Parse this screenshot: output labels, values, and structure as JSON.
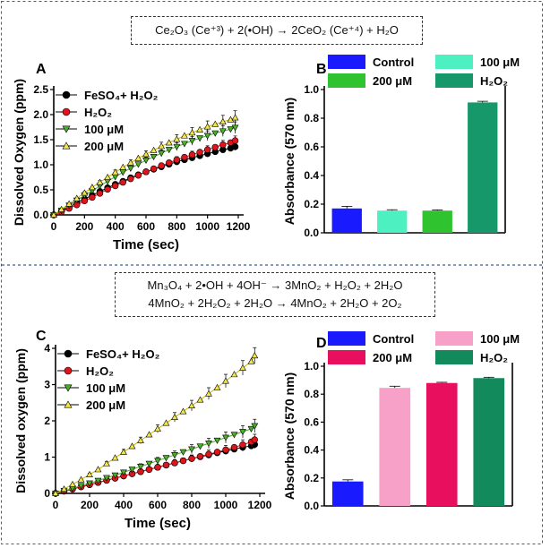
{
  "equations": {
    "top": "Ce₂O₃ (Ce⁺³) + 2(•OH) → 2CeO₂ (Ce⁺⁴) + H₂O",
    "bottom_line1": "Mn₃O₄ + 2•OH + 4OH⁻ → 3MnO₂ + H₂O₂ + 2H₂O",
    "bottom_line2": "4MnO₂ + 2H₂O₂ + 2H₂O → 4MnO₂ + 2H₂O + 2O₂"
  },
  "colors": {
    "black": "#000000",
    "red": "#e0141b",
    "green": "#4caf2a",
    "yellow": "#f2e64a",
    "control_blue": "#1a1aff",
    "aqua_100": "#4df0c0",
    "green_200": "#2fc42f",
    "h2o2_green": "#17986a",
    "pink_100": "#f7a0c8",
    "crimson_200": "#e8105e",
    "h2o2_teal": "#138a5c",
    "divider": "#3a5f8f"
  },
  "chart_data": [
    {
      "panel": "A",
      "type": "line",
      "xlabel": "Time (sec)",
      "ylabel": "Dissolved Oxygen (ppm)",
      "xlim": [
        0,
        1200
      ],
      "ylim": [
        0,
        2.5
      ],
      "xticks": [
        "0",
        "200",
        "400",
        "600",
        "800",
        "1000",
        "1200"
      ],
      "yticks": [
        "0.0",
        "0.5",
        "1.0",
        "1.5",
        "2.0",
        "2.5"
      ],
      "legend_position": "top-left",
      "series": [
        {
          "name": "FeSO₄+ H₂O₂",
          "color": "#000000",
          "marker": "circle",
          "x": [
            0,
            50,
            100,
            150,
            200,
            250,
            300,
            350,
            400,
            450,
            500,
            550,
            600,
            650,
            700,
            750,
            800,
            850,
            900,
            950,
            1000,
            1050,
            1100,
            1150,
            1180
          ],
          "y": [
            0,
            0.08,
            0.16,
            0.24,
            0.32,
            0.39,
            0.47,
            0.54,
            0.61,
            0.67,
            0.74,
            0.8,
            0.86,
            0.91,
            0.96,
            1.01,
            1.06,
            1.1,
            1.14,
            1.18,
            1.22,
            1.26,
            1.3,
            1.33,
            1.36
          ]
        },
        {
          "name": "H₂O₂",
          "color": "#e0141b",
          "marker": "circle",
          "x": [
            0,
            50,
            100,
            150,
            200,
            250,
            300,
            350,
            400,
            450,
            500,
            550,
            600,
            650,
            700,
            750,
            800,
            850,
            900,
            950,
            1000,
            1050,
            1100,
            1150,
            1180
          ],
          "y": [
            0,
            0.06,
            0.13,
            0.2,
            0.28,
            0.35,
            0.43,
            0.51,
            0.58,
            0.65,
            0.72,
            0.79,
            0.86,
            0.92,
            0.98,
            1.04,
            1.1,
            1.15,
            1.2,
            1.25,
            1.3,
            1.35,
            1.4,
            1.44,
            1.48
          ]
        },
        {
          "name": "100 μM",
          "color": "#4caf2a",
          "marker": "triangle-down",
          "x": [
            0,
            50,
            100,
            150,
            200,
            250,
            300,
            350,
            400,
            450,
            500,
            550,
            600,
            650,
            700,
            750,
            800,
            850,
            900,
            950,
            1000,
            1050,
            1100,
            1150,
            1180
          ],
          "y": [
            0,
            0.09,
            0.19,
            0.29,
            0.39,
            0.48,
            0.58,
            0.67,
            0.76,
            0.85,
            0.93,
            1.01,
            1.09,
            1.16,
            1.23,
            1.3,
            1.36,
            1.42,
            1.48,
            1.53,
            1.58,
            1.63,
            1.67,
            1.71,
            1.74
          ]
        },
        {
          "name": "200 μM",
          "color": "#f2e64a",
          "marker": "triangle-up",
          "x": [
            0,
            50,
            100,
            150,
            200,
            250,
            300,
            350,
            400,
            450,
            500,
            550,
            600,
            650,
            700,
            750,
            800,
            850,
            900,
            950,
            1000,
            1050,
            1100,
            1150,
            1180
          ],
          "y": [
            0,
            0.11,
            0.22,
            0.33,
            0.44,
            0.55,
            0.65,
            0.75,
            0.85,
            0.95,
            1.04,
            1.13,
            1.21,
            1.29,
            1.37,
            1.44,
            1.51,
            1.58,
            1.64,
            1.7,
            1.76,
            1.81,
            1.86,
            1.9,
            1.94
          ]
        }
      ]
    },
    {
      "panel": "B",
      "type": "bar",
      "ylabel": "Absorbance (570 nm)",
      "ylim": [
        0,
        1.0
      ],
      "yticks": [
        "0.0",
        "0.2",
        "0.4",
        "0.6",
        "0.8",
        "1.0"
      ],
      "legend_position": "top",
      "bars": [
        {
          "name": "Control",
          "value": 0.17,
          "err": 0.015,
          "color": "#1a1aff"
        },
        {
          "name": "100 μM",
          "value": 0.155,
          "err": 0.006,
          "color": "#4df0c0"
        },
        {
          "name": "200 μM",
          "value": 0.155,
          "err": 0.005,
          "color": "#2fc42f"
        },
        {
          "name": "H₂O₂",
          "value": 0.91,
          "err": 0.008,
          "color": "#17986a"
        }
      ]
    },
    {
      "panel": "C",
      "type": "line",
      "xlabel": "Time (sec)",
      "ylabel": "Dissolved oxygen (ppm)",
      "xlim": [
        0,
        1200
      ],
      "ylim": [
        0,
        4
      ],
      "xticks": [
        "0",
        "200",
        "400",
        "600",
        "800",
        "1000",
        "1200"
      ],
      "yticks": [
        "0",
        "1",
        "2",
        "3",
        "4"
      ],
      "legend_position": "top-left",
      "series": [
        {
          "name": "FeSO₄+ H₂O₂",
          "color": "#000000",
          "marker": "circle",
          "x": [
            0,
            50,
            100,
            150,
            200,
            250,
            300,
            350,
            400,
            450,
            500,
            550,
            600,
            650,
            700,
            750,
            800,
            850,
            900,
            950,
            1000,
            1050,
            1100,
            1150,
            1170
          ],
          "y": [
            0,
            0.06,
            0.12,
            0.18,
            0.24,
            0.3,
            0.36,
            0.42,
            0.48,
            0.54,
            0.6,
            0.66,
            0.72,
            0.78,
            0.84,
            0.9,
            0.96,
            1.01,
            1.06,
            1.12,
            1.17,
            1.22,
            1.27,
            1.31,
            1.35
          ]
        },
        {
          "name": "H₂O₂",
          "color": "#e0141b",
          "marker": "circle",
          "x": [
            0,
            50,
            100,
            150,
            200,
            250,
            300,
            350,
            400,
            450,
            500,
            550,
            600,
            650,
            700,
            750,
            800,
            850,
            900,
            950,
            1000,
            1050,
            1100,
            1150,
            1170
          ],
          "y": [
            0,
            0.06,
            0.12,
            0.18,
            0.24,
            0.3,
            0.36,
            0.42,
            0.48,
            0.54,
            0.6,
            0.66,
            0.72,
            0.78,
            0.84,
            0.9,
            0.96,
            1.02,
            1.08,
            1.14,
            1.2,
            1.27,
            1.34,
            1.42,
            1.48
          ]
        },
        {
          "name": "100 μM",
          "color": "#4caf2a",
          "marker": "triangle-down",
          "x": [
            0,
            50,
            100,
            150,
            200,
            250,
            300,
            350,
            400,
            450,
            500,
            550,
            600,
            650,
            700,
            750,
            800,
            850,
            900,
            950,
            1000,
            1050,
            1100,
            1150,
            1170
          ],
          "y": [
            0,
            0.07,
            0.14,
            0.21,
            0.28,
            0.35,
            0.43,
            0.5,
            0.58,
            0.66,
            0.74,
            0.82,
            0.9,
            0.98,
            1.06,
            1.14,
            1.22,
            1.3,
            1.38,
            1.46,
            1.54,
            1.62,
            1.7,
            1.78,
            1.86
          ]
        },
        {
          "name": "200 μM",
          "color": "#f2e64a",
          "marker": "triangle-up",
          "x": [
            0,
            50,
            100,
            150,
            200,
            250,
            300,
            350,
            400,
            450,
            500,
            550,
            600,
            650,
            700,
            750,
            800,
            850,
            900,
            950,
            1000,
            1050,
            1100,
            1150,
            1170
          ],
          "y": [
            0,
            0.12,
            0.25,
            0.38,
            0.52,
            0.66,
            0.82,
            0.98,
            1.14,
            1.3,
            1.46,
            1.62,
            1.78,
            1.94,
            2.1,
            2.26,
            2.42,
            2.58,
            2.75,
            2.92,
            3.1,
            3.28,
            3.46,
            3.64,
            3.8
          ]
        }
      ]
    },
    {
      "panel": "D",
      "type": "bar",
      "ylabel": "Absorbance (570 nm)",
      "ylim": [
        0,
        1.0
      ],
      "yticks": [
        "0.0",
        "0.2",
        "0.4",
        "0.6",
        "0.8",
        "1.0"
      ],
      "legend_position": "top",
      "bars": [
        {
          "name": "Control",
          "value": 0.175,
          "err": 0.012,
          "color": "#1a1aff"
        },
        {
          "name": "100 μM",
          "value": 0.845,
          "err": 0.012,
          "color": "#f7a0c8"
        },
        {
          "name": "200 μM",
          "value": 0.88,
          "err": 0.005,
          "color": "#e8105e"
        },
        {
          "name": "H₂O₂",
          "value": 0.915,
          "err": 0.006,
          "color": "#138a5c"
        }
      ]
    }
  ]
}
